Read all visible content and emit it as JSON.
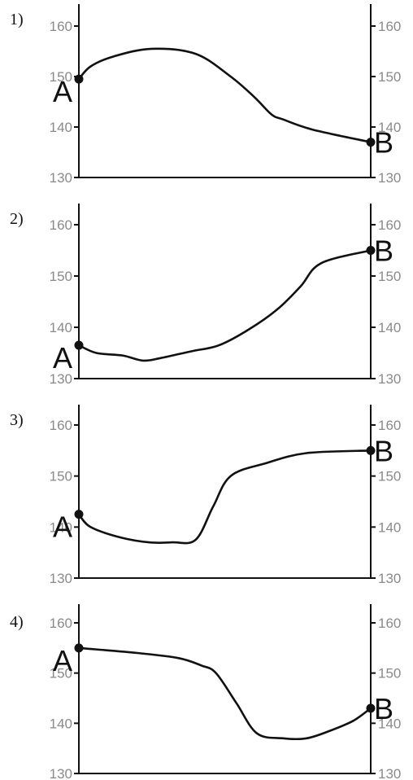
{
  "chart_data": [
    {
      "type": "line",
      "panel_label": "1)",
      "ylim": [
        130,
        160
      ],
      "y_ticks_left": [
        "160",
        "150",
        "140",
        "130"
      ],
      "y_ticks_right": [
        "160",
        "150",
        "140",
        "130"
      ],
      "x": [
        0,
        4,
        12,
        25,
        40,
        52,
        60,
        66,
        70,
        80,
        100
      ],
      "y": [
        149.5,
        152,
        154,
        155.5,
        154.5,
        150,
        146,
        142.5,
        141.5,
        139.5,
        137
      ],
      "start_label": "A",
      "end_label": "B"
    },
    {
      "type": "line",
      "panel_label": "2)",
      "ylim": [
        130,
        160
      ],
      "y_ticks_left": [
        "160",
        "150",
        "140",
        "130"
      ],
      "y_ticks_right": [
        "160",
        "150",
        "140",
        "130"
      ],
      "x": [
        0,
        6,
        15,
        22,
        28,
        36,
        40,
        48,
        58,
        68,
        76,
        83,
        100
      ],
      "y": [
        136.5,
        135,
        134.5,
        133.5,
        134,
        135,
        135.5,
        136.5,
        139.5,
        143.5,
        148,
        152.5,
        155
      ],
      "start_label": "A",
      "end_label": "B"
    },
    {
      "type": "line",
      "panel_label": "3)",
      "ylim": [
        130,
        160
      ],
      "y_ticks_left": [
        "160",
        "150",
        "140",
        "130"
      ],
      "y_ticks_right": [
        "160",
        "150",
        "140",
        "130"
      ],
      "x": [
        0,
        4,
        14,
        24,
        32,
        40,
        46,
        52,
        64,
        78,
        100
      ],
      "y": [
        142.5,
        140,
        138,
        137,
        137,
        137.5,
        144,
        150,
        152.5,
        154.5,
        155
      ],
      "start_label": "A",
      "end_label": "B"
    },
    {
      "type": "line",
      "panel_label": "4)",
      "ylim": [
        130,
        160
      ],
      "y_ticks_left": [
        "160",
        "150",
        "140",
        "130"
      ],
      "y_ticks_right": [
        "160",
        "150",
        "140",
        "130"
      ],
      "x": [
        0,
        20,
        34,
        42,
        47,
        54,
        61,
        70,
        78,
        86,
        94,
        100
      ],
      "y": [
        155,
        154,
        153,
        151.5,
        150,
        144,
        138,
        137,
        137,
        138.5,
        140.5,
        143
      ],
      "start_label": "A",
      "end_label": "B"
    }
  ]
}
